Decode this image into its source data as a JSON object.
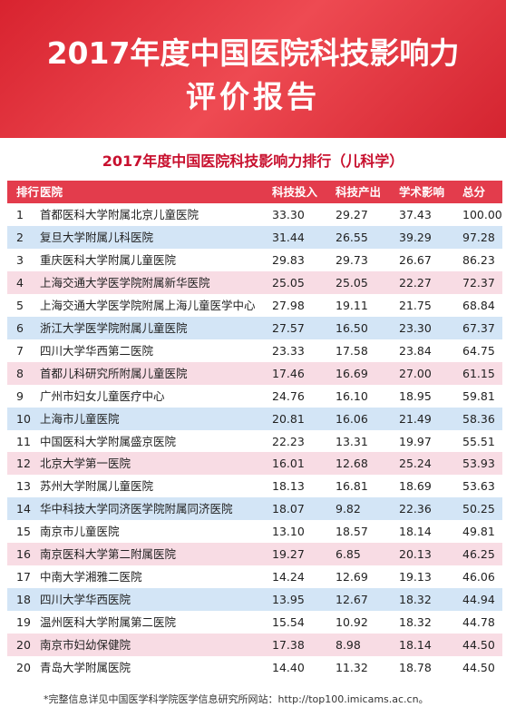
{
  "header": {
    "title_line1": "2017年度中国医院科技影响力",
    "title_line2": "评价报告"
  },
  "table": {
    "title": "2017年度中国医院科技影响力排行（儿科学）",
    "columns": [
      "排行",
      "医院",
      "科技投入",
      "科技产出",
      "学术影响",
      "总分"
    ],
    "rows": [
      [
        "1",
        "首都医科大学附属北京儿童医院",
        "33.30",
        "29.27",
        "37.43",
        "100.00"
      ],
      [
        "2",
        "复旦大学附属儿科医院",
        "31.44",
        "26.55",
        "39.29",
        "97.28"
      ],
      [
        "3",
        "重庆医科大学附属儿童医院",
        "29.83",
        "29.73",
        "26.67",
        "86.23"
      ],
      [
        "4",
        "上海交通大学医学院附属新华医院",
        "25.05",
        "25.05",
        "22.27",
        "72.37"
      ],
      [
        "5",
        "上海交通大学医学院附属上海儿童医学中心",
        "27.98",
        "19.11",
        "21.75",
        "68.84"
      ],
      [
        "6",
        "浙江大学医学院附属儿童医院",
        "27.57",
        "16.50",
        "23.30",
        "67.37"
      ],
      [
        "7",
        "四川大学华西第二医院",
        "23.33",
        "17.58",
        "23.84",
        "64.75"
      ],
      [
        "8",
        "首都儿科研究所附属儿童医院",
        "17.46",
        "16.69",
        "27.00",
        "61.15"
      ],
      [
        "9",
        "广州市妇女儿童医疗中心",
        "24.76",
        "16.10",
        "18.95",
        "59.81"
      ],
      [
        "10",
        "上海市儿童医院",
        "20.81",
        "16.06",
        "21.49",
        "58.36"
      ],
      [
        "11",
        "中国医科大学附属盛京医院",
        "22.23",
        "13.31",
        "19.97",
        "55.51"
      ],
      [
        "12",
        "北京大学第一医院",
        "16.01",
        "12.68",
        "25.24",
        "53.93"
      ],
      [
        "13",
        "苏州大学附属儿童医院",
        "18.13",
        "16.81",
        "18.69",
        "53.63"
      ],
      [
        "14",
        "华中科技大学同济医学院附属同济医院",
        "18.07",
        "9.82",
        "22.36",
        "50.25"
      ],
      [
        "15",
        "南京市儿童医院",
        "13.10",
        "18.57",
        "18.14",
        "49.81"
      ],
      [
        "16",
        "南京医科大学第二附属医院",
        "19.27",
        "6.85",
        "20.13",
        "46.25"
      ],
      [
        "17",
        "中南大学湘雅二医院",
        "14.24",
        "12.69",
        "19.13",
        "46.06"
      ],
      [
        "18",
        "四川大学华西医院",
        "13.95",
        "12.67",
        "18.32",
        "44.94"
      ],
      [
        "19",
        "温州医科大学附属第二医院",
        "15.54",
        "10.92",
        "18.32",
        "44.78"
      ],
      [
        "20",
        "南京市妇幼保健院",
        "17.38",
        "8.98",
        "18.14",
        "44.50"
      ],
      [
        "20",
        "青岛大学附属医院",
        "14.40",
        "11.32",
        "18.78",
        "44.50"
      ]
    ]
  },
  "footnote": "*完整信息详见中国医学科学院医学信息研究所网站：http://top100.imicams.ac.cn。"
}
